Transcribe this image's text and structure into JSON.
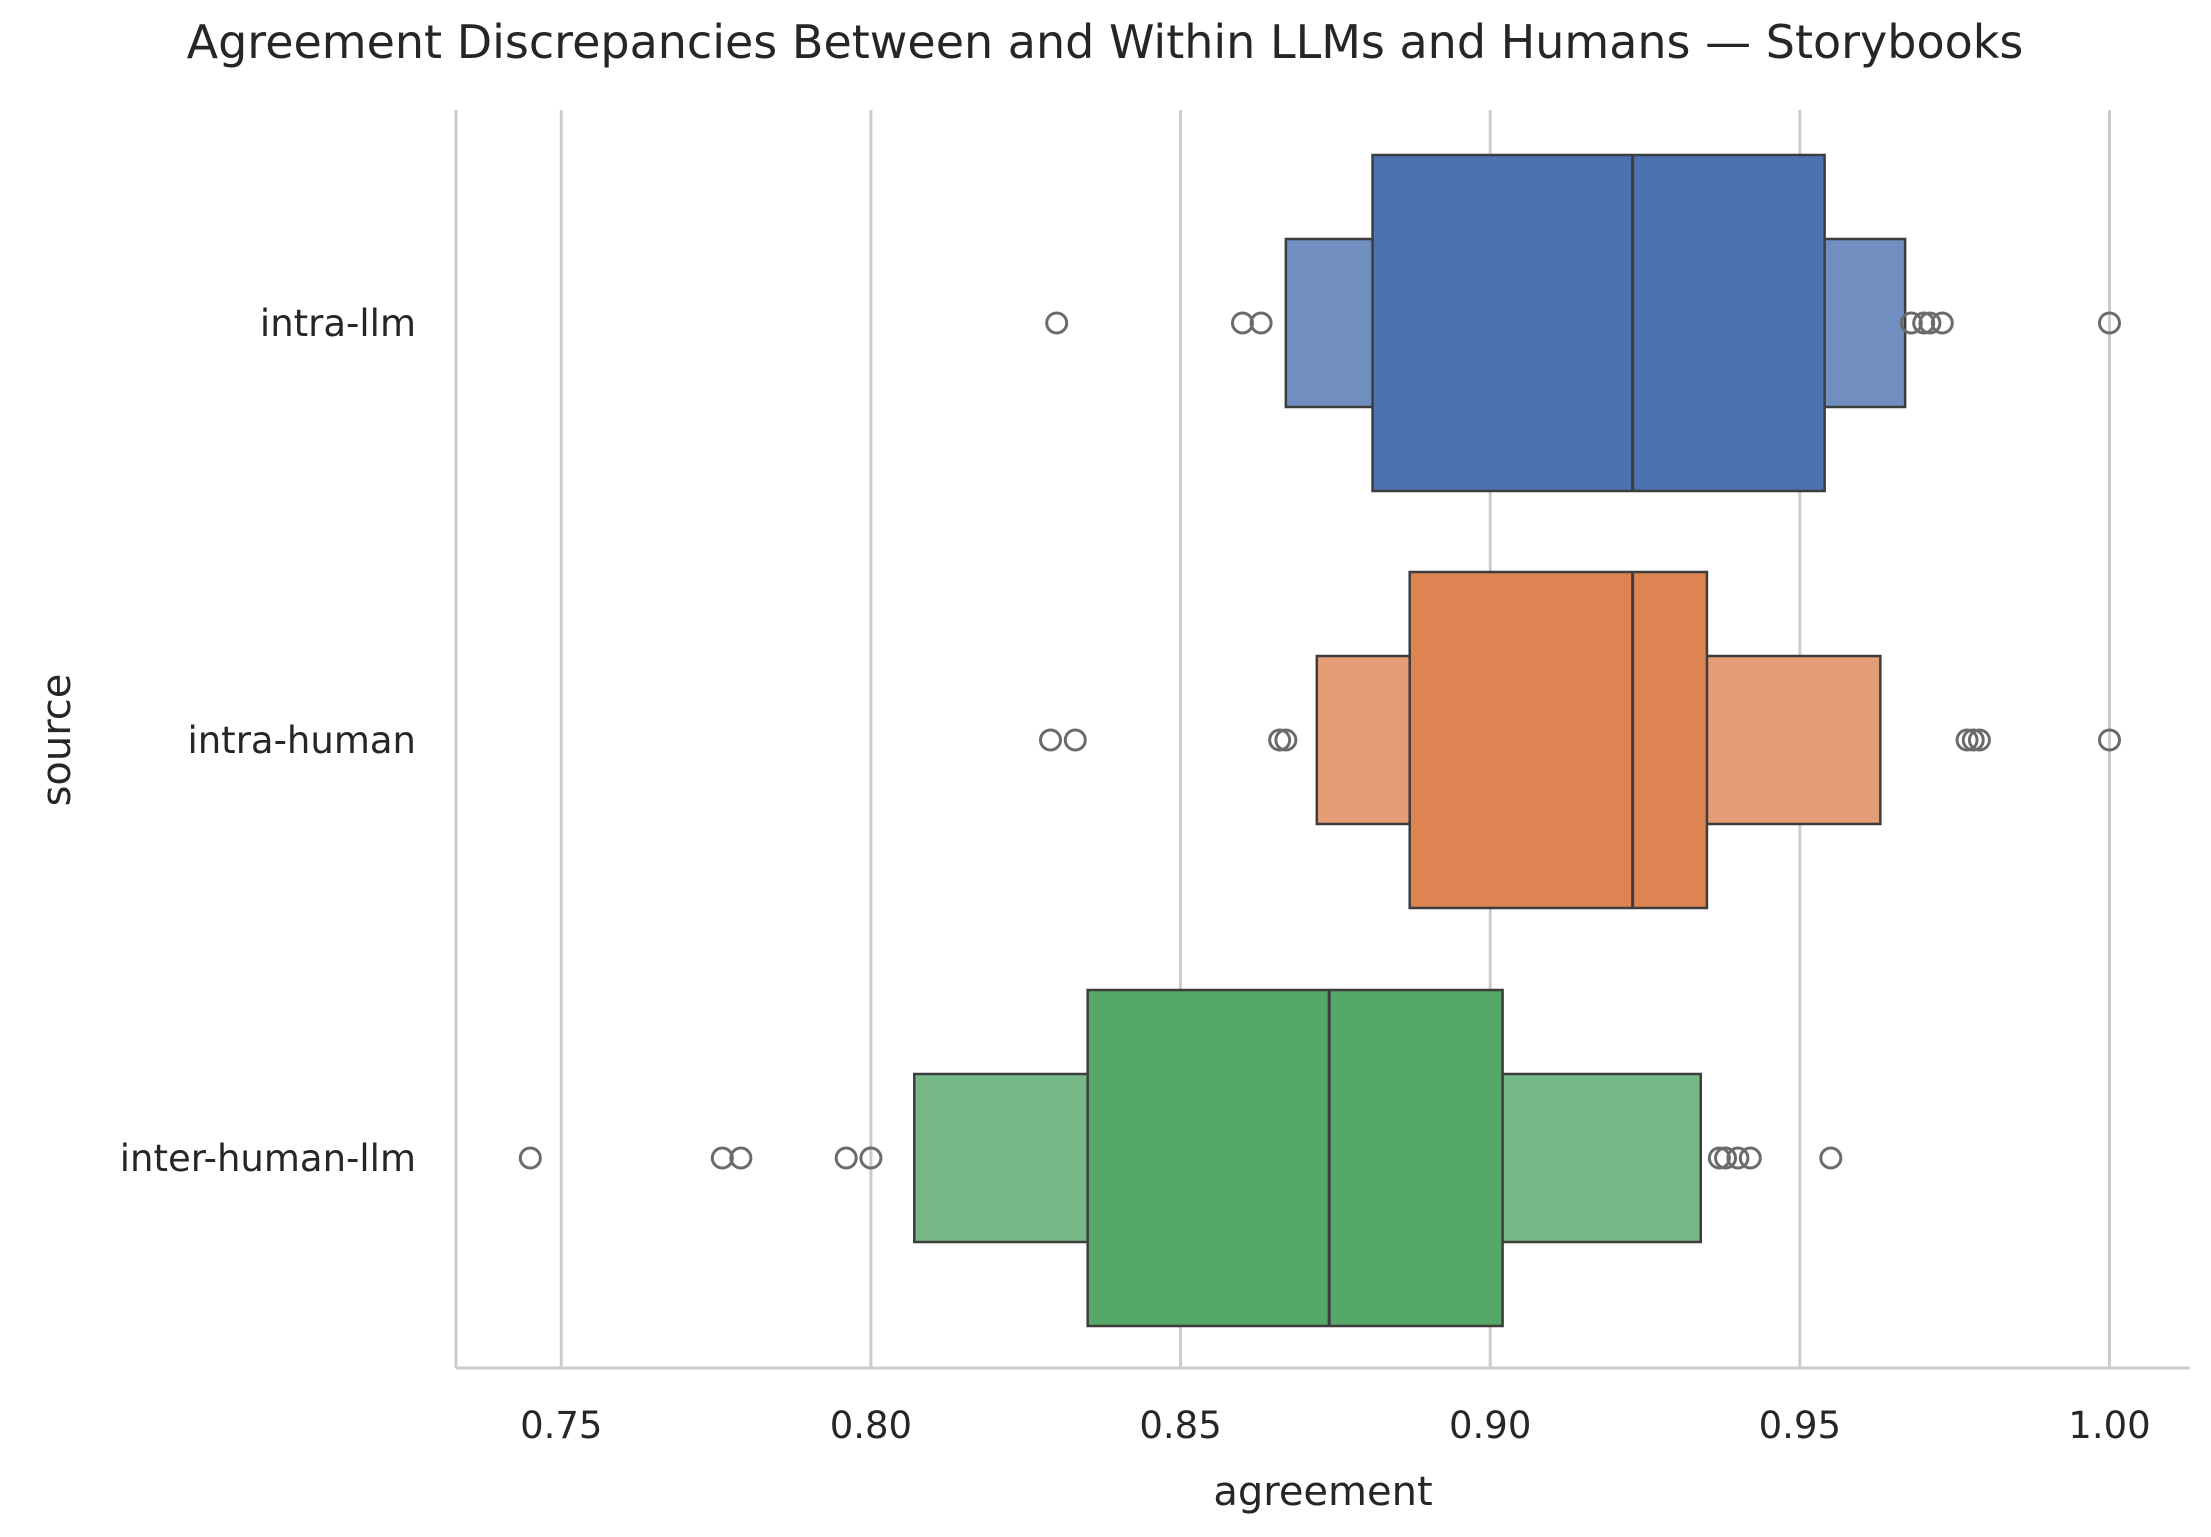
{
  "chart_data": {
    "type": "boxen",
    "title": "Agreement Discrepancies Between and Within LLMs and Humans — Storybooks",
    "xlabel": "agreement",
    "ylabel": "source",
    "orientation": "horizontal",
    "xlim": [
      0.733,
      1.013
    ],
    "xticks": [
      0.75,
      0.8,
      0.85,
      0.9,
      0.95,
      1.0
    ],
    "xtick_labels": [
      "0.75",
      "0.80",
      "0.85",
      "0.90",
      "0.95",
      "1.00"
    ],
    "grid": "vertical",
    "categories": [
      "intra-llm",
      "intra-human",
      "inter-human-llm"
    ],
    "series": [
      {
        "category": "intra-llm",
        "color": "#4c72b0",
        "median": 0.923,
        "boxes": [
          {
            "low": 0.881,
            "high": 0.954
          },
          {
            "low": 0.867,
            "high": 0.967
          }
        ],
        "outliers": [
          0.83,
          0.86,
          0.863,
          0.968,
          0.97,
          0.971,
          0.973,
          1.0
        ]
      },
      {
        "category": "intra-human",
        "color": "#dd8452",
        "median": 0.923,
        "boxes": [
          {
            "low": 0.887,
            "high": 0.935
          },
          {
            "low": 0.872,
            "high": 0.963
          }
        ],
        "outliers": [
          0.829,
          0.833,
          0.866,
          0.867,
          0.977,
          0.978,
          0.979,
          1.0
        ]
      },
      {
        "category": "inter-human-llm",
        "color": "#55a868",
        "median": 0.874,
        "boxes": [
          {
            "low": 0.835,
            "high": 0.902
          },
          {
            "low": 0.807,
            "high": 0.934
          }
        ],
        "outliers": [
          0.745,
          0.776,
          0.779,
          0.796,
          0.8,
          0.937,
          0.938,
          0.94,
          0.942,
          0.955
        ]
      }
    ]
  }
}
